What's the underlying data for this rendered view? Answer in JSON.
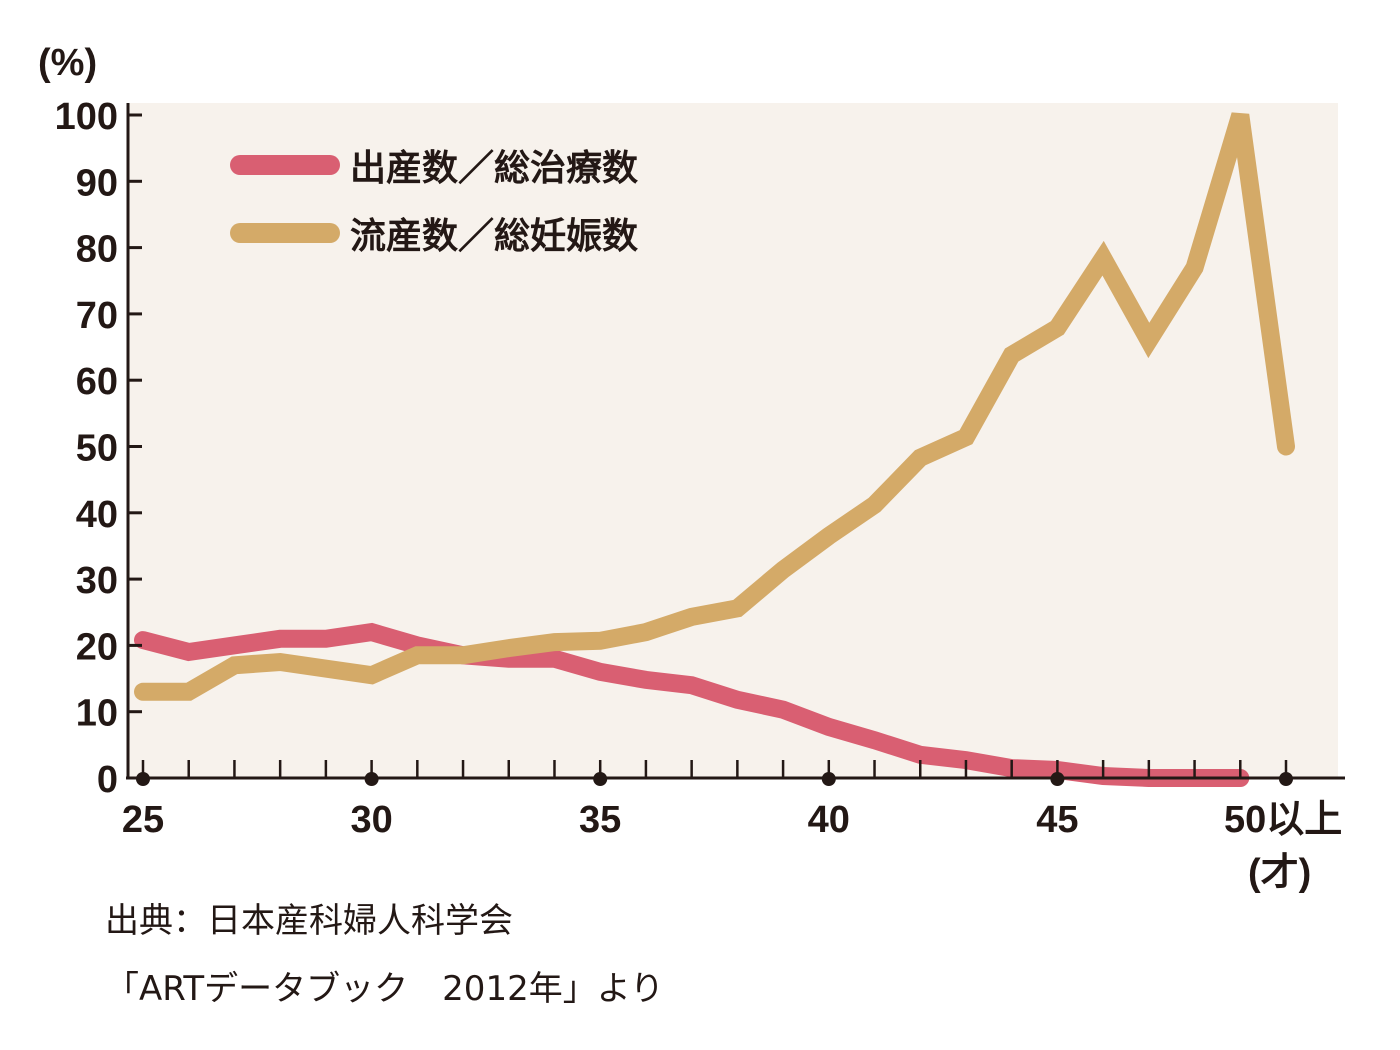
{
  "chart_data": {
    "type": "line",
    "ylabel": "(%)",
    "xlabel": "(才)",
    "ylim": [
      0,
      100
    ],
    "xlim": [
      25,
      50
    ],
    "yticks": [
      0,
      10,
      20,
      30,
      40,
      50,
      60,
      70,
      80,
      90,
      100
    ],
    "xticks": [
      {
        "value": 25,
        "label": "25"
      },
      {
        "value": 30,
        "label": "30"
      },
      {
        "value": 35,
        "label": "35"
      },
      {
        "value": 40,
        "label": "40"
      },
      {
        "value": 45,
        "label": "45"
      },
      {
        "value": 50,
        "label": "50以上"
      }
    ],
    "grid": false,
    "legend_position": "top-left",
    "x": [
      25,
      26,
      27,
      28,
      29,
      30,
      31,
      32,
      33,
      34,
      35,
      36,
      37,
      38,
      39,
      40,
      41,
      42,
      43,
      44,
      45,
      46,
      47,
      48,
      49,
      50
    ],
    "series": [
      {
        "name": "出産数／総治療数",
        "color": "#d95f72",
        "values": [
          20.8,
          19,
          20,
          21,
          21,
          22,
          20,
          18.5,
          18,
          18,
          16,
          14.8,
          14,
          11.8,
          10.3,
          7.7,
          5.7,
          3.5,
          2.7,
          1.5,
          1.2,
          0.3,
          0,
          0,
          0,
          null
        ]
      },
      {
        "name": "流産数／総妊娠数",
        "color": "#d4aa68",
        "values": [
          13,
          13,
          17,
          17.5,
          16.5,
          15.5,
          18.5,
          18.5,
          19.6,
          20.5,
          20.7,
          22,
          24.3,
          25.6,
          31.4,
          36.5,
          41.2,
          48.3,
          51.4,
          63.8,
          67.9,
          78.4,
          66,
          77,
          100,
          50
        ]
      }
    ],
    "source_lines": [
      "出典：日本産科婦人科学会",
      "「ARTデータブック　2012年」より"
    ]
  },
  "colors": {
    "plot_background": "#f7f2ec",
    "axis": "#231815"
  }
}
